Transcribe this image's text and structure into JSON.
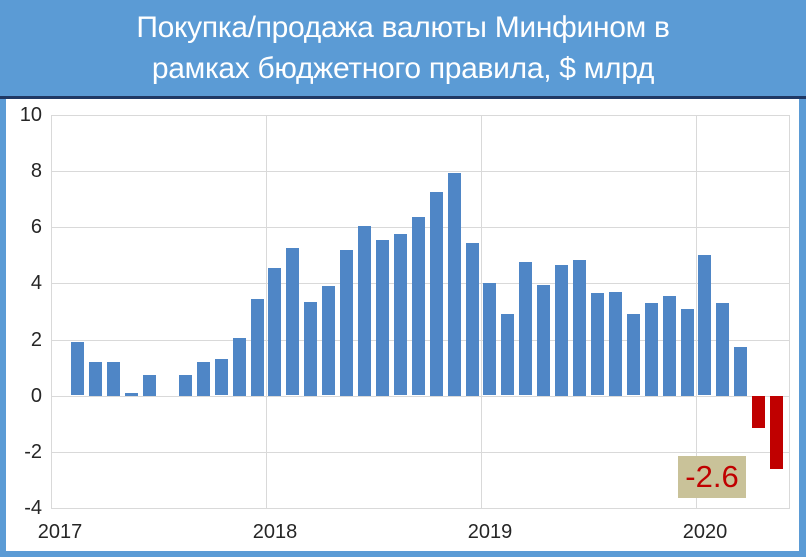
{
  "title": {
    "line1": "Покупка/продажа валюты Минфином в",
    "line2": "рамках бюджетного правила, $ млрд"
  },
  "chart_data": {
    "type": "bar",
    "title": "Покупка/продажа валюты Минфином в рамках бюджетного правила, $ млрд",
    "ylabel": "$ млрд",
    "ylim": [
      -4,
      10
    ],
    "y_ticks": [
      10,
      8,
      6,
      4,
      2,
      0,
      -2,
      -4
    ],
    "x_tick_labels": [
      "2017",
      "2018",
      "2019",
      "2020"
    ],
    "grid": "on",
    "legend": "none",
    "x": [
      "2017-02",
      "2017-03",
      "2017-04",
      "2017-05",
      "2017-06",
      "2017-07",
      "2017-08",
      "2017-09",
      "2017-10",
      "2017-11",
      "2017-12",
      "2018-01",
      "2018-02",
      "2018-03",
      "2018-04",
      "2018-05",
      "2018-06",
      "2018-07",
      "2018-08",
      "2018-09",
      "2018-10",
      "2018-11",
      "2018-12",
      "2019-01",
      "2019-02",
      "2019-03",
      "2019-04",
      "2019-05",
      "2019-06",
      "2019-07",
      "2019-08",
      "2019-09",
      "2019-10",
      "2019-11",
      "2019-12",
      "2020-01",
      "2020-02",
      "2020-03",
      "2020-04",
      "2020-05"
    ],
    "values": [
      1.9,
      1.2,
      1.2,
      0.1,
      0.75,
      0,
      0.75,
      1.2,
      1.3,
      2.05,
      3.45,
      4.55,
      5.25,
      3.35,
      3.9,
      5.2,
      6.05,
      5.55,
      5.75,
      6.35,
      7.25,
      7.95,
      5.45,
      4.0,
      2.9,
      4.75,
      3.95,
      4.65,
      4.85,
      3.65,
      3.7,
      2.9,
      3.3,
      3.55,
      3.1,
      5.0,
      3.3,
      1.75,
      -1.15,
      -2.6
    ],
    "annotation": {
      "text": "-2.6",
      "target_month": "2020-05"
    },
    "colors": {
      "positive_bar": "#4F86C6",
      "negative_bar": "#C00000",
      "title_background": "#5B9BD5",
      "title_text": "#FFFFFF",
      "title_separator": "#1F3864",
      "frame_border": "#5B9BD5",
      "gridline": "#D9D9D9",
      "tick_text": "#262626",
      "annotation_background": "#C9C299",
      "annotation_text": "#C00000"
    }
  }
}
